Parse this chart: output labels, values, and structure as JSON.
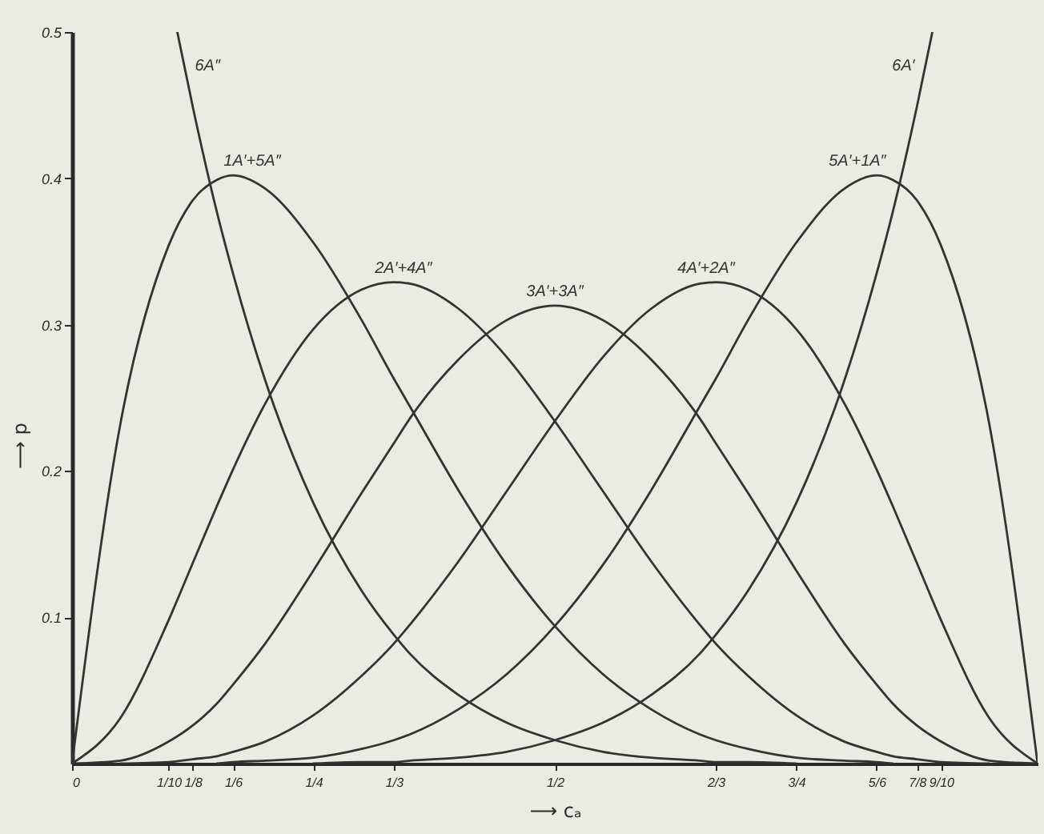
{
  "chart_data": {
    "type": "line",
    "xlabel": "⟶ cₐ",
    "ylabel": "⟶ p",
    "xlim": [
      0,
      1
    ],
    "ylim": [
      0,
      0.5
    ],
    "xticks": [
      0,
      {
        "value": 0.1,
        "label": "1/10"
      },
      {
        "value": 0.125,
        "label": "1/8"
      },
      {
        "value": 0.1667,
        "label": "1/6"
      },
      {
        "value": 0.25,
        "label": "1/4"
      },
      {
        "value": 0.3333,
        "label": "1/3"
      },
      {
        "value": 0.5,
        "label": "1/2"
      },
      {
        "value": 0.6667,
        "label": "2/3"
      },
      {
        "value": 0.75,
        "label": "3/4"
      },
      {
        "value": 0.8333,
        "label": "5/6"
      },
      {
        "value": 0.875,
        "label": "7/8"
      },
      {
        "value": 0.9,
        "label": "9/10"
      }
    ],
    "yticks": [
      0.1,
      0.2,
      0.3,
      0.4,
      0.5
    ],
    "series": [
      {
        "name": "6A″",
        "color": "#333333",
        "x": [
          0.109,
          0.125,
          0.15,
          0.1667,
          0.2,
          0.25,
          0.3,
          0.3333,
          0.35,
          0.4,
          0.45,
          0.5,
          0.55,
          0.6,
          0.65,
          0.6667,
          0.7,
          0.75
        ],
        "values": [
          0.5,
          0.449,
          0.377,
          0.335,
          0.262,
          0.178,
          0.118,
          0.088,
          0.075,
          0.047,
          0.028,
          0.016,
          0.008,
          0.004,
          0.002,
          0.001,
          0.001,
          0
        ]
      },
      {
        "name": "1A′+5A″",
        "color": "#333333",
        "x": [
          0,
          0.05,
          0.1,
          0.125,
          0.15,
          0.1667,
          0.2,
          0.25,
          0.3,
          0.3333,
          0.35,
          0.4,
          0.45,
          0.5,
          0.55,
          0.6,
          0.65,
          0.6667,
          0.7,
          0.75,
          0.8,
          0.8333,
          0.85
        ],
        "values": [
          0,
          0.232,
          0.354,
          0.385,
          0.399,
          0.402,
          0.393,
          0.356,
          0.303,
          0.263,
          0.244,
          0.187,
          0.136,
          0.094,
          0.061,
          0.037,
          0.02,
          0.016,
          0.01,
          0.004,
          0.002,
          0.001,
          0
        ]
      },
      {
        "name": "2A′+4A″",
        "color": "#333333",
        "x": [
          0,
          0.05,
          0.1,
          0.125,
          0.15,
          0.1667,
          0.2,
          0.25,
          0.3,
          0.3333,
          0.35,
          0.4,
          0.45,
          0.5,
          0.55,
          0.6,
          0.65,
          0.6667,
          0.7,
          0.75,
          0.8,
          0.8333,
          0.85,
          0.875,
          0.9,
          0.95
        ],
        "values": [
          0,
          0.031,
          0.098,
          0.137,
          0.176,
          0.201,
          0.246,
          0.297,
          0.324,
          0.329,
          0.328,
          0.311,
          0.278,
          0.234,
          0.186,
          0.138,
          0.095,
          0.082,
          0.06,
          0.033,
          0.015,
          0.008,
          0.005,
          0.003,
          0.001,
          0
        ]
      },
      {
        "name": "3A′+3A″",
        "color": "#333333",
        "x": [
          0,
          0.05,
          0.1,
          0.125,
          0.15,
          0.1667,
          0.2,
          0.25,
          0.3,
          0.3333,
          0.35,
          0.4,
          0.45,
          0.5,
          0.55,
          0.6,
          0.65,
          0.6667,
          0.7,
          0.75,
          0.8,
          0.8333,
          0.85,
          0.875,
          0.9,
          0.95,
          1
        ],
        "values": [
          0,
          0.002,
          0.015,
          0.026,
          0.041,
          0.054,
          0.082,
          0.132,
          0.185,
          0.219,
          0.236,
          0.276,
          0.303,
          0.313,
          0.303,
          0.276,
          0.236,
          0.219,
          0.185,
          0.132,
          0.082,
          0.054,
          0.041,
          0.026,
          0.015,
          0.002,
          0
        ]
      },
      {
        "name": "4A′+2A″",
        "color": "#333333",
        "x": [
          0.05,
          0.1,
          0.125,
          0.15,
          0.1667,
          0.2,
          0.25,
          0.3,
          0.3333,
          0.35,
          0.4,
          0.45,
          0.5,
          0.55,
          0.6,
          0.65,
          0.6667,
          0.7,
          0.75,
          0.8,
          0.8333,
          0.85,
          0.875,
          0.9,
          0.95,
          1
        ],
        "values": [
          0,
          0.001,
          0.003,
          0.005,
          0.008,
          0.015,
          0.033,
          0.06,
          0.082,
          0.095,
          0.138,
          0.186,
          0.234,
          0.278,
          0.311,
          0.328,
          0.329,
          0.324,
          0.297,
          0.246,
          0.201,
          0.176,
          0.137,
          0.098,
          0.031,
          0
        ]
      },
      {
        "name": "5A′+1A″",
        "color": "#333333",
        "x": [
          0.15,
          0.1667,
          0.2,
          0.25,
          0.3,
          0.3333,
          0.35,
          0.4,
          0.45,
          0.5,
          0.55,
          0.6,
          0.65,
          0.6667,
          0.7,
          0.75,
          0.8,
          0.8333,
          0.85,
          0.875,
          0.9,
          0.95,
          1
        ],
        "values": [
          0,
          0.001,
          0.002,
          0.004,
          0.01,
          0.016,
          0.02,
          0.037,
          0.061,
          0.094,
          0.136,
          0.187,
          0.244,
          0.263,
          0.303,
          0.356,
          0.393,
          0.402,
          0.399,
          0.385,
          0.354,
          0.232,
          0
        ]
      },
      {
        "name": "6A′",
        "color": "#333333",
        "x": [
          0.25,
          0.3,
          0.3333,
          0.35,
          0.4,
          0.45,
          0.5,
          0.55,
          0.6,
          0.65,
          0.6667,
          0.7,
          0.75,
          0.8,
          0.8333,
          0.85,
          0.875,
          0.891
        ],
        "values": [
          0,
          0.001,
          0.001,
          0.002,
          0.004,
          0.008,
          0.016,
          0.028,
          0.047,
          0.075,
          0.088,
          0.118,
          0.178,
          0.262,
          0.335,
          0.377,
          0.449,
          0.5
        ]
      }
    ]
  }
}
